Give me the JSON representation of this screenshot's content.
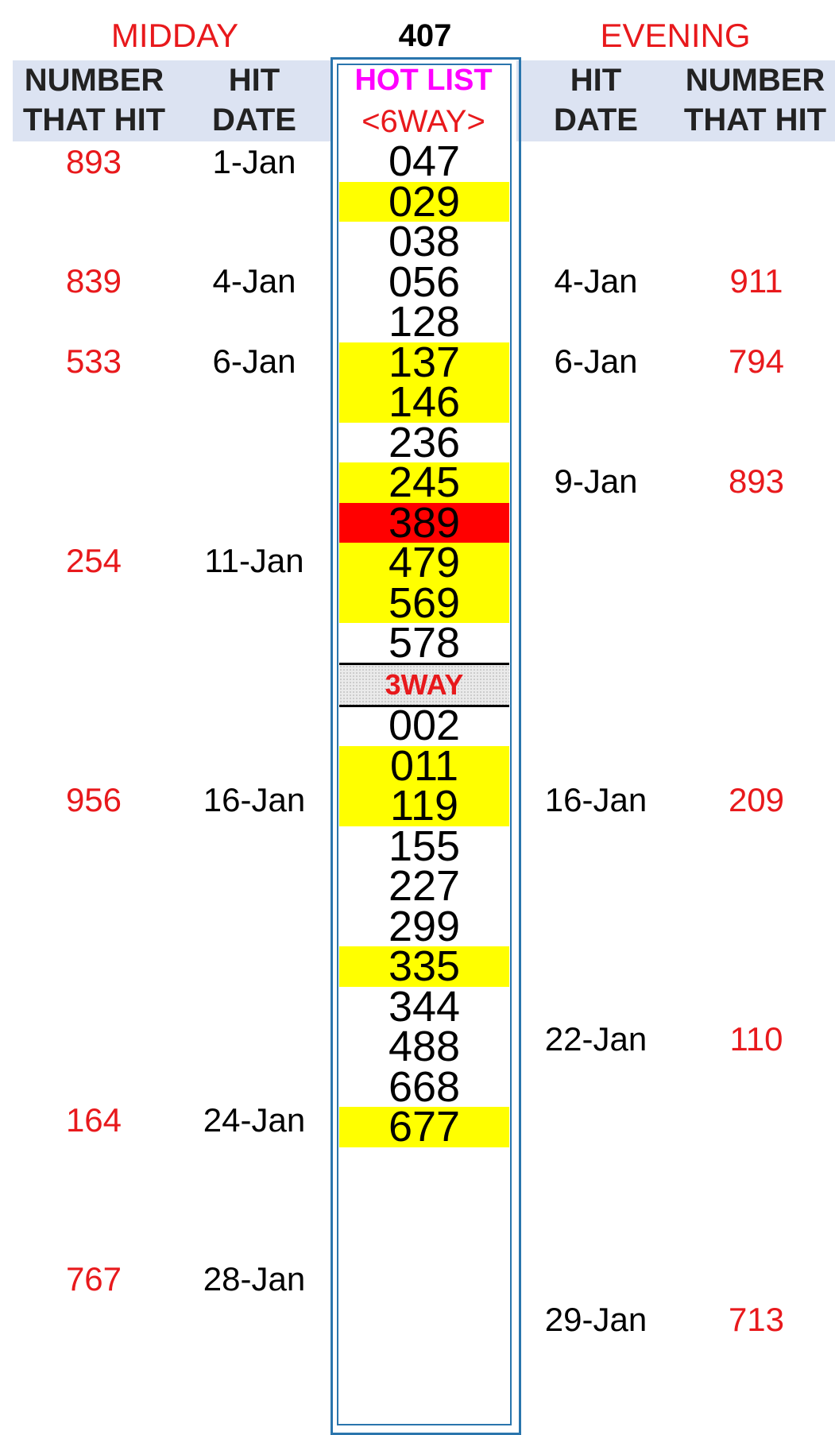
{
  "header": {
    "midday_title": "MIDDAY",
    "evening_title": "EVENING",
    "total": "407",
    "col_number_line1": "NUMBER",
    "col_number_line2": "THAT HIT",
    "col_date_line1": "HIT",
    "col_date_line2": "DATE",
    "hot_list": "HOT LIST",
    "six_way": "<6WAY>",
    "three_way": "3WAY"
  },
  "colors": {
    "red_text": "#e8191c",
    "magenta": "#ff00ff",
    "highlight_yellow": "#ffff00",
    "highlight_red": "#ff0000",
    "frame_blue": "#2a75ad",
    "header_band": "#dce3f2"
  },
  "hot_list_6way": [
    {
      "num": "047",
      "hl": "none"
    },
    {
      "num": "029",
      "hl": "yellow"
    },
    {
      "num": "038",
      "hl": "none"
    },
    {
      "num": "056",
      "hl": "none"
    },
    {
      "num": "128",
      "hl": "none"
    },
    {
      "num": "137",
      "hl": "yellow"
    },
    {
      "num": "146",
      "hl": "yellow"
    },
    {
      "num": "236",
      "hl": "none"
    },
    {
      "num": "245",
      "hl": "yellow"
    },
    {
      "num": "389",
      "hl": "red"
    },
    {
      "num": "479",
      "hl": "yellow"
    },
    {
      "num": "569",
      "hl": "yellow"
    },
    {
      "num": "578",
      "hl": "none"
    }
  ],
  "hot_list_3way": [
    {
      "num": "002",
      "hl": "none"
    },
    {
      "num": "011",
      "hl": "yellow"
    },
    {
      "num": "119",
      "hl": "yellow"
    },
    {
      "num": "155",
      "hl": "none"
    },
    {
      "num": "227",
      "hl": "none"
    },
    {
      "num": "299",
      "hl": "none"
    },
    {
      "num": "335",
      "hl": "yellow"
    },
    {
      "num": "344",
      "hl": "none"
    },
    {
      "num": "488",
      "hl": "none"
    },
    {
      "num": "668",
      "hl": "none"
    },
    {
      "num": "677",
      "hl": "yellow"
    }
  ],
  "midday_hits": [
    {
      "number": "893",
      "date": "1-Jan"
    },
    {
      "number": "839",
      "date": "4-Jan"
    },
    {
      "number": "533",
      "date": "6-Jan"
    },
    {
      "number": "254",
      "date": "11-Jan"
    },
    {
      "number": "956",
      "date": "16-Jan"
    },
    {
      "number": "164",
      "date": "24-Jan"
    },
    {
      "number": "767",
      "date": "28-Jan"
    }
  ],
  "evening_hits": [
    {
      "number": "911",
      "date": "4-Jan"
    },
    {
      "number": "794",
      "date": "6-Jan"
    },
    {
      "number": "893",
      "date": "9-Jan"
    },
    {
      "number": "209",
      "date": "16-Jan"
    },
    {
      "number": "110",
      "date": "22-Jan"
    },
    {
      "number": "713",
      "date": "29-Jan"
    }
  ]
}
